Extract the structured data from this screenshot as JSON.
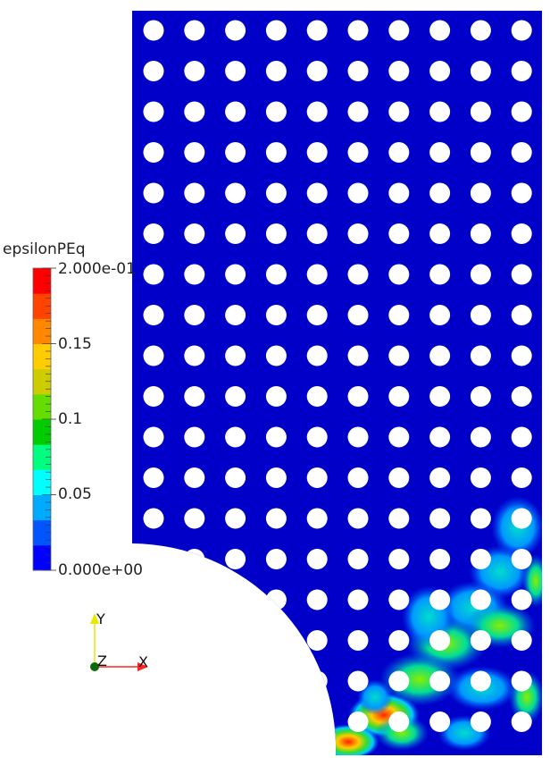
{
  "colorbar": {
    "title": "epsilonPEq",
    "labels": [
      "2.000e-01",
      "0.15",
      "0.1",
      "0.05",
      "0.000e+00"
    ],
    "stops": [
      "#0000ff",
      "#0055ff",
      "#00aaff",
      "#00ffff",
      "#00ff80",
      "#00cc00",
      "#66dd00",
      "#cccc00",
      "#ffcc00",
      "#ff8800",
      "#ff4400",
      "#ff0000"
    ]
  },
  "axes": {
    "x": "X",
    "y": "Y",
    "z": "Z"
  },
  "colors": {
    "background": "#ffffff",
    "mesh": "#0000c8",
    "hole": "#ffffff",
    "x_axis": "#ff0000",
    "y_axis": "#ffff00",
    "origin": "#006400"
  },
  "lattice": {
    "rows": 18,
    "cols": 10
  }
}
